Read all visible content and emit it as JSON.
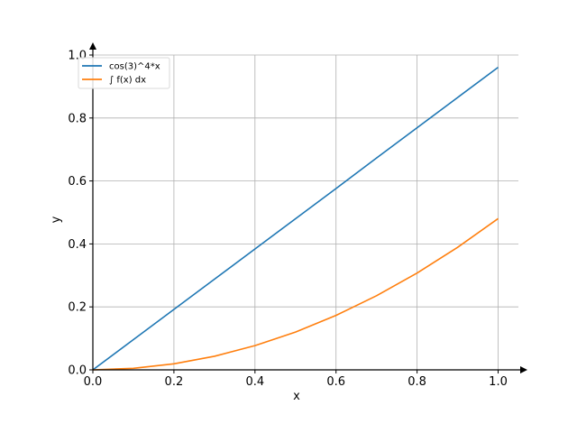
{
  "chart_data": {
    "type": "line",
    "xlabel": "x",
    "ylabel": "y",
    "xlim": [
      0.0,
      1.05
    ],
    "ylim": [
      0.0,
      1.0
    ],
    "xticks": [
      0.0,
      0.2,
      0.4,
      0.6,
      0.8,
      1.0
    ],
    "yticks": [
      0.0,
      0.2,
      0.4,
      0.6,
      0.8,
      1.0
    ],
    "xtick_labels": [
      "0.0",
      "0.2",
      "0.4",
      "0.6",
      "0.8",
      "1.0"
    ],
    "ytick_labels": [
      "0.0",
      "0.2",
      "0.4",
      "0.6",
      "0.8",
      "1.0"
    ],
    "grid": true,
    "legend_position": "top-left",
    "series": [
      {
        "name": "cos(3)^4*x",
        "color": "#1f77b4",
        "x": [
          0.0,
          0.1,
          0.2,
          0.3,
          0.4,
          0.5,
          0.6,
          0.7,
          0.8,
          0.9,
          1.0
        ],
        "y": [
          0.0,
          0.096,
          0.192,
          0.288,
          0.384,
          0.48,
          0.576,
          0.673,
          0.769,
          0.865,
          0.961
        ]
      },
      {
        "name": "∫ f(x) dx",
        "color": "#ff7f0e",
        "x": [
          0.0,
          0.1,
          0.2,
          0.3,
          0.4,
          0.5,
          0.6,
          0.7,
          0.8,
          0.9,
          1.0
        ],
        "y": [
          0.0,
          0.0048,
          0.0192,
          0.0432,
          0.0769,
          0.1201,
          0.173,
          0.2355,
          0.3075,
          0.3892,
          0.4805
        ]
      }
    ]
  }
}
